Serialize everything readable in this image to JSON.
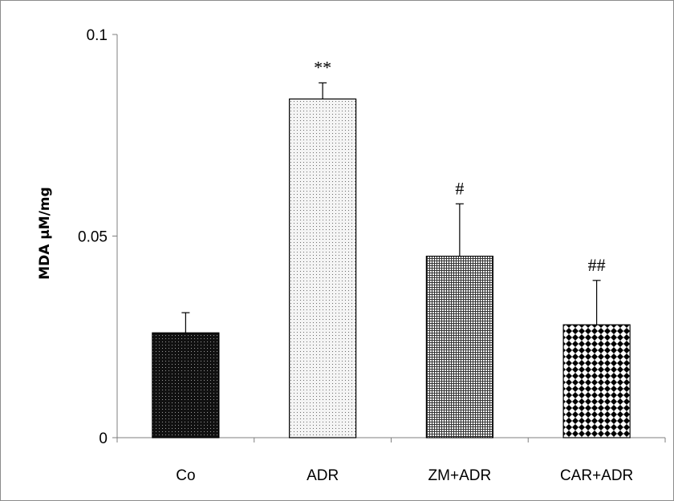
{
  "chart_data": {
    "type": "bar",
    "title": "",
    "xlabel": "",
    "ylabel": "MDA  μM/mg",
    "ylim": [
      0,
      0.1
    ],
    "yticks": [
      {
        "value": 0,
        "label": "0"
      },
      {
        "value": 0.05,
        "label": "0.05"
      },
      {
        "value": 0.1,
        "label": "0.1"
      }
    ],
    "grid": false,
    "legend": "none",
    "categories": [
      "Co",
      "ADR",
      "ZM+ADR",
      "CAR+ADR"
    ],
    "values": [
      0.026,
      0.084,
      0.045,
      0.028
    ],
    "errors": [
      0.005,
      0.004,
      0.013,
      0.011
    ],
    "annotations": [
      "",
      "**",
      "#",
      "##"
    ],
    "patterns": [
      "dark-dots",
      "light-dots",
      "grid",
      "diamonds"
    ]
  }
}
